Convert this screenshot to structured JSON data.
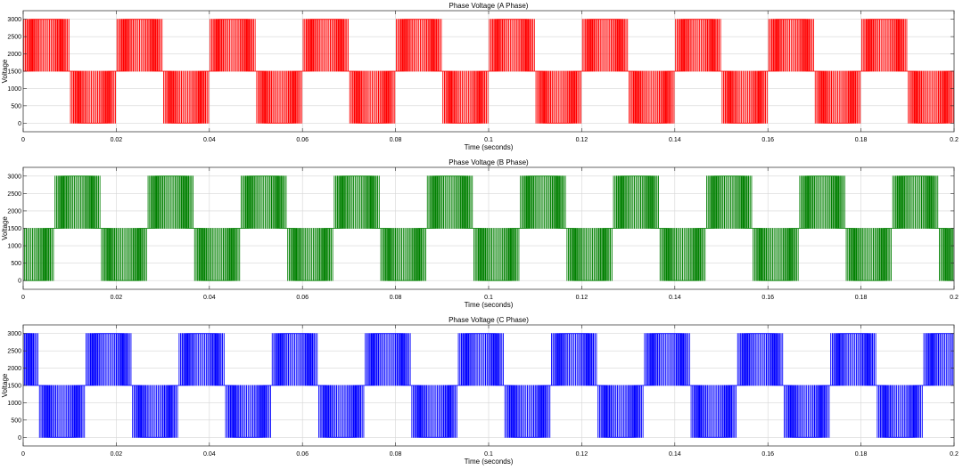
{
  "chart_data": [
    {
      "type": "line",
      "title": "Phase Voltage (A Phase)",
      "xlabel": "Time (seconds)",
      "ylabel": "Voltage",
      "xlim": [
        0,
        0.2
      ],
      "ylim": [
        -250,
        3250
      ],
      "xticks": [
        "0",
        "0.02",
        "0.04",
        "0.06",
        "0.08",
        "0.1",
        "0.12",
        "0.14",
        "0.16",
        "0.18",
        "0.2"
      ],
      "yticks": [
        "0",
        "500",
        "1000",
        "1500",
        "2000",
        "2500",
        "3000"
      ],
      "grid": true,
      "color": "#ff0000",
      "period": 0.02,
      "phase_offset": 0,
      "levels": {
        "low": 0,
        "mid": 1500,
        "high": 3000
      },
      "switching_freq": 3000
    },
    {
      "type": "line",
      "title": "Phase Voltage (B Phase)",
      "xlabel": "Time (seconds)",
      "ylabel": "Voltage",
      "xlim": [
        0,
        0.2
      ],
      "ylim": [
        -250,
        3250
      ],
      "xticks": [
        "0",
        "0.02",
        "0.04",
        "0.06",
        "0.08",
        "0.1",
        "0.12",
        "0.14",
        "0.16",
        "0.18",
        "0.2"
      ],
      "yticks": [
        "0",
        "500",
        "1000",
        "1500",
        "2000",
        "2500",
        "3000"
      ],
      "grid": true,
      "color": "#008000",
      "period": 0.02,
      "phase_offset": 0.00667,
      "levels": {
        "low": 0,
        "mid": 1500,
        "high": 3000
      },
      "switching_freq": 3000
    },
    {
      "type": "line",
      "title": "Phase Voltage (C Phase)",
      "xlabel": "Time (seconds)",
      "ylabel": "Voltage",
      "xlim": [
        0,
        0.2
      ],
      "ylim": [
        -250,
        3250
      ],
      "xticks": [
        "0",
        "0.02",
        "0.04",
        "0.06",
        "0.08",
        "0.1",
        "0.12",
        "0.14",
        "0.16",
        "0.18",
        "0.2"
      ],
      "yticks": [
        "0",
        "500",
        "1000",
        "1500",
        "2000",
        "2500",
        "3000"
      ],
      "grid": true,
      "color": "#0000ff",
      "period": 0.02,
      "phase_offset": 0.01333,
      "levels": {
        "low": 0,
        "mid": 1500,
        "high": 3000
      },
      "switching_freq": 3000
    }
  ]
}
